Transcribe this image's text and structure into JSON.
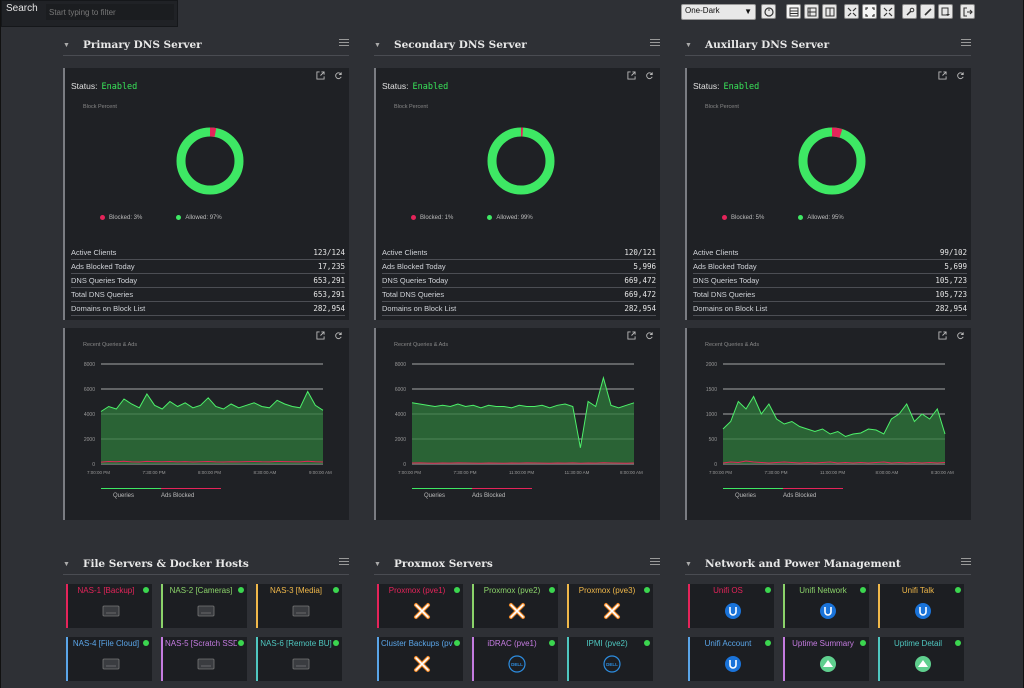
{
  "topbar": {
    "search_label": "Search",
    "search_placeholder": "Start typing to filter",
    "theme": "One-Dark"
  },
  "colors": {
    "green": "#39e55a",
    "red": "#e5245a",
    "bg": "#2e3035",
    "card": "#1f2125"
  },
  "dns": [
    {
      "title": "Primary DNS Server",
      "status_label": "Status:",
      "status_value": "Enabled",
      "chart_title": "Block Percent",
      "blocked_label": "Blocked: 3%",
      "allowed_label": "Allowed: 97%",
      "blocked_pct": 3,
      "stats": [
        {
          "label": "Active Clients",
          "value": "123/124"
        },
        {
          "label": "Ads Blocked Today",
          "value": "17,235"
        },
        {
          "label": "DNS Queries Today",
          "value": "653,291"
        },
        {
          "label": "Total DNS Queries",
          "value": "653,291"
        },
        {
          "label": "Domains on Block List",
          "value": "282,954"
        }
      ],
      "line_title": "Recent Queries & Ads",
      "y_ticks": [
        "8000",
        "6000",
        "4000",
        "2000",
        "0"
      ],
      "x_ticks": [
        "7:00:00 PM",
        "7:30:00 PM",
        "8:00:00 PM",
        "8:30:00 AM",
        "9:00:00 AM"
      ],
      "legend_queries": "Queries",
      "legend_ads": "Ads Blocked"
    },
    {
      "title": "Secondary DNS Server",
      "status_label": "Status:",
      "status_value": "Enabled",
      "chart_title": "Block Percent",
      "blocked_label": "Blocked: 1%",
      "allowed_label": "Allowed: 99%",
      "blocked_pct": 1,
      "stats": [
        {
          "label": "Active Clients",
          "value": "120/121"
        },
        {
          "label": "Ads Blocked Today",
          "value": "5,996"
        },
        {
          "label": "DNS Queries Today",
          "value": "669,472"
        },
        {
          "label": "Total DNS Queries",
          "value": "669,472"
        },
        {
          "label": "Domains on Block List",
          "value": "282,954"
        }
      ],
      "line_title": "Recent Queries & Ads",
      "y_ticks": [
        "8000",
        "6000",
        "4000",
        "2000",
        "0"
      ],
      "x_ticks": [
        "7:00:00 PM",
        "7:30:00 PM",
        "11:00:00 PM",
        "11:30:00 AM",
        "8:00:00 AM"
      ],
      "legend_queries": "Queries",
      "legend_ads": "Ads Blocked"
    },
    {
      "title": "Auxillary DNS Server",
      "status_label": "Status:",
      "status_value": "Enabled",
      "chart_title": "Block Percent",
      "blocked_label": "Blocked: 5%",
      "allowed_label": "Allowed: 95%",
      "blocked_pct": 5,
      "stats": [
        {
          "label": "Active Clients",
          "value": "99/102"
        },
        {
          "label": "Ads Blocked Today",
          "value": "5,699"
        },
        {
          "label": "DNS Queries Today",
          "value": "105,723"
        },
        {
          "label": "Total DNS Queries",
          "value": "105,723"
        },
        {
          "label": "Domains on Block List",
          "value": "282,954"
        }
      ],
      "line_title": "Recent Queries & Ads",
      "y_ticks": [
        "2000",
        "1500",
        "1000",
        "500",
        "0"
      ],
      "x_ticks": [
        "7:00:00 PM",
        "7:30:00 PM",
        "11:00:00 PM",
        "8:00:00 AM",
        "8:30:00 AM"
      ],
      "legend_queries": "Queries",
      "legend_ads": "Ads Blocked"
    }
  ],
  "groups": [
    {
      "title": "File Servers & Docker Hosts",
      "tiles": [
        {
          "name": "NAS-1 [Backup]",
          "color": "#e5245a",
          "icon": "nas-icon"
        },
        {
          "name": "NAS-2 [Cameras]",
          "color": "#8bd36a",
          "icon": "nas-icon"
        },
        {
          "name": "NAS-3 [Media]",
          "color": "#f0b84a",
          "icon": "nas-icon"
        },
        {
          "name": "NAS-4 [File Cloud]",
          "color": "#5aa5e8",
          "icon": "nas-icon"
        },
        {
          "name": "NAS-5 [Scratch SSD]",
          "color": "#c47be0",
          "icon": "nas-icon"
        },
        {
          "name": "NAS-6 [Remote BU]",
          "color": "#4fc7c0",
          "icon": "nas-icon"
        }
      ]
    },
    {
      "title": "Proxmox Servers",
      "tiles": [
        {
          "name": "Proxmox (pve1)",
          "color": "#e5245a",
          "icon": "proxmox-icon"
        },
        {
          "name": "Proxmox (pve2)",
          "color": "#8bd36a",
          "icon": "proxmox-icon"
        },
        {
          "name": "Proxmox (pve3)",
          "color": "#f0b84a",
          "icon": "proxmox-icon"
        },
        {
          "name": "Cluster Backups (pve1)",
          "color": "#5aa5e8",
          "icon": "proxmox-icon"
        },
        {
          "name": "iDRAC (pve1)",
          "color": "#c47be0",
          "icon": "dell-icon"
        },
        {
          "name": "IPMI (pve2)",
          "color": "#4fc7c0",
          "icon": "dell-icon"
        }
      ]
    },
    {
      "title": "Network and Power Management",
      "tiles": [
        {
          "name": "Unifi OS",
          "color": "#e5245a",
          "icon": "unifi-icon"
        },
        {
          "name": "Unifi Network",
          "color": "#8bd36a",
          "icon": "unifi-icon"
        },
        {
          "name": "Unifi Talk",
          "color": "#f0b84a",
          "icon": "unifi-icon"
        },
        {
          "name": "Unifi Account",
          "color": "#5aa5e8",
          "icon": "unifi-icon"
        },
        {
          "name": "Uptime Summary",
          "color": "#c47be0",
          "icon": "uptime-icon"
        },
        {
          "name": "Uptime Detail",
          "color": "#4fc7c0",
          "icon": "uptime-icon"
        }
      ]
    }
  ],
  "chart_data": [
    {
      "type": "pie",
      "title": "Block Percent",
      "categories": [
        "Blocked",
        "Allowed"
      ],
      "values": [
        3,
        97
      ]
    },
    {
      "type": "pie",
      "title": "Block Percent",
      "categories": [
        "Blocked",
        "Allowed"
      ],
      "values": [
        1,
        99
      ]
    },
    {
      "type": "pie",
      "title": "Block Percent",
      "categories": [
        "Blocked",
        "Allowed"
      ],
      "values": [
        5,
        95
      ]
    },
    {
      "type": "area",
      "title": "Recent Queries & Ads",
      "ylim": [
        0,
        8000
      ],
      "series": [
        {
          "name": "Queries",
          "values": [
            4200,
            4600,
            4400,
            5200,
            4800,
            4500,
            5600,
            4700,
            4400,
            5000,
            4600,
            4900,
            4500,
            4700,
            5300,
            4600,
            4400,
            4800,
            4500,
            4700,
            4900,
            4600,
            4500,
            5100,
            4800,
            4600,
            4500,
            5800,
            4700,
            4300
          ]
        },
        {
          "name": "Ads Blocked",
          "values": [
            150,
            200,
            180,
            220,
            170,
            160,
            210,
            190,
            180,
            200,
            170,
            190,
            160,
            180,
            200,
            170,
            160,
            180,
            170,
            190,
            200,
            180,
            170,
            210,
            190,
            180,
            170,
            220,
            180,
            160
          ]
        }
      ]
    },
    {
      "type": "area",
      "title": "Recent Queries & Ads",
      "ylim": [
        0,
        8000
      ],
      "series": [
        {
          "name": "Queries",
          "values": [
            4900,
            4800,
            4700,
            4600,
            4700,
            4600,
            4800,
            4600,
            4700,
            4500,
            4700,
            4600,
            4600,
            4500,
            4700,
            4600,
            4600,
            4700,
            4500,
            4700,
            4800,
            4600,
            1300,
            5000,
            4600,
            6900,
            4700,
            4500,
            4700,
            4900
          ]
        },
        {
          "name": "Ads Blocked",
          "values": [
            80,
            90,
            70,
            60,
            80,
            70,
            90,
            80,
            70,
            60,
            80,
            70,
            60,
            80,
            70,
            90,
            80,
            70,
            60,
            80,
            70,
            90,
            60,
            80,
            70,
            100,
            80,
            70,
            60,
            80
          ]
        }
      ]
    },
    {
      "type": "area",
      "title": "Recent Queries & Ads",
      "ylim": [
        0,
        2000
      ],
      "series": [
        {
          "name": "Queries",
          "values": [
            700,
            850,
            1250,
            1100,
            1350,
            1000,
            1200,
            900,
            800,
            850,
            750,
            700,
            650,
            700,
            600,
            650,
            550,
            600,
            620,
            700,
            680,
            600,
            900,
            1000,
            1200,
            850,
            1000,
            900,
            1100,
            600
          ]
        },
        {
          "name": "Ads Blocked",
          "values": [
            20,
            40,
            30,
            60,
            40,
            30,
            20,
            30,
            40,
            30,
            20,
            30,
            20,
            30,
            40,
            20,
            30,
            20,
            30,
            20,
            30,
            40,
            20,
            30,
            20,
            30,
            20,
            30,
            20,
            30
          ]
        }
      ]
    }
  ]
}
